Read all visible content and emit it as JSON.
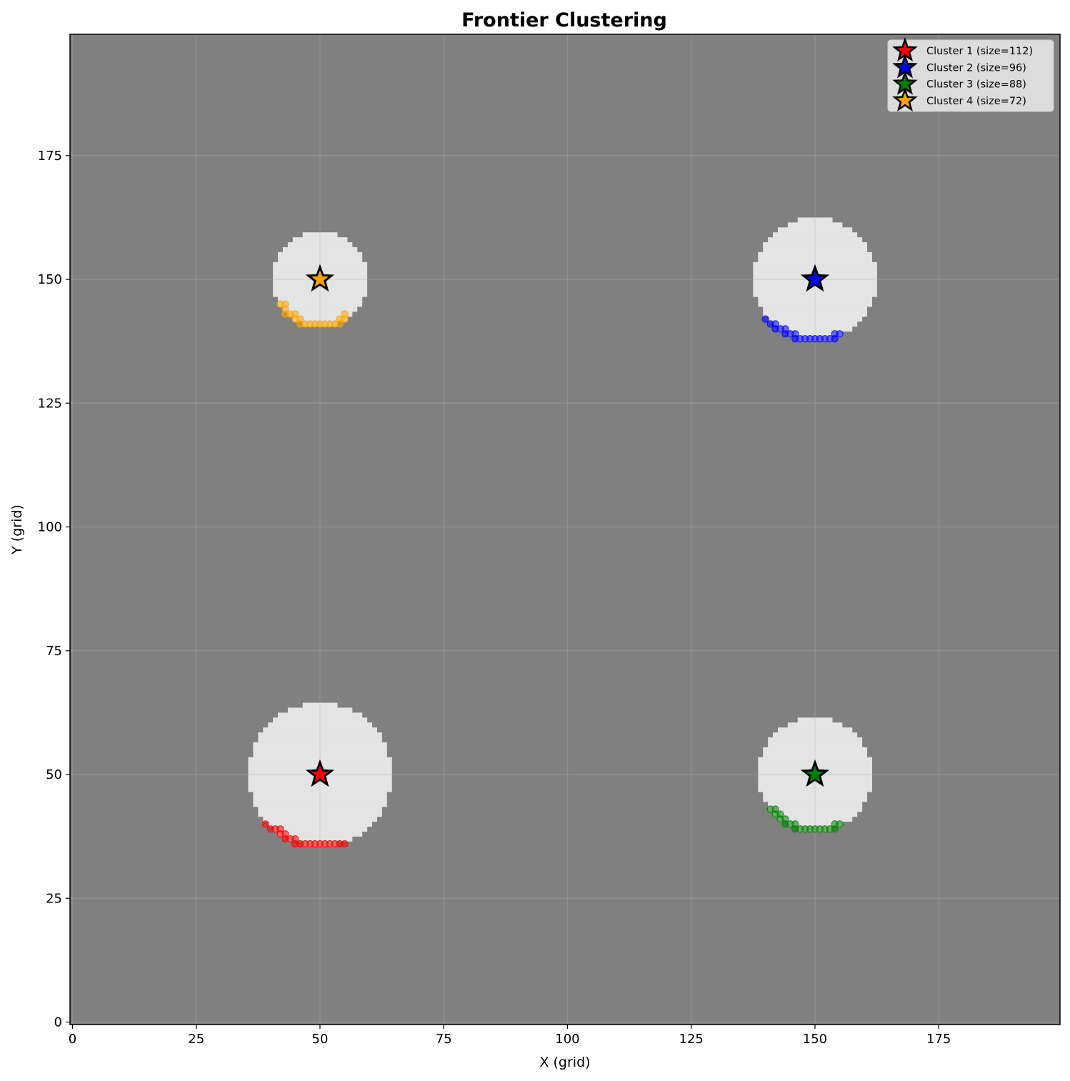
{
  "chart_data": {
    "type": "scatter",
    "title": "Frontier Clustering",
    "xlabel": "X (grid)",
    "ylabel": "Y (grid)",
    "xlim": [
      -0.5,
      199.5
    ],
    "ylim": [
      -0.5,
      199.5
    ],
    "grid": true,
    "legend_position": "top-right",
    "xticks": [
      0,
      25,
      50,
      75,
      100,
      125,
      150,
      175
    ],
    "yticks": [
      0,
      25,
      50,
      75,
      100,
      125,
      150,
      175
    ],
    "background": {
      "unknown_color": "#808080",
      "free_color": "#e4e4e4",
      "explored_regions": [
        {
          "cx": 50,
          "cy": 50,
          "r": 14.5
        },
        {
          "cx": 150,
          "cy": 150,
          "r": 12.5
        },
        {
          "cx": 150,
          "cy": 50,
          "r": 11.5
        },
        {
          "cx": 50,
          "cy": 150,
          "r": 9.5
        }
      ]
    },
    "series": [
      {
        "name": "Cluster 1 (size=112)",
        "color": "#ff0000",
        "centroid": [
          50,
          50
        ],
        "points": [
          [
            39,
            40
          ],
          [
            40,
            39
          ],
          [
            41,
            39
          ],
          [
            42,
            39
          ],
          [
            42,
            38
          ],
          [
            43,
            38
          ],
          [
            43,
            37
          ],
          [
            44,
            37
          ],
          [
            45,
            37
          ],
          [
            45,
            36
          ],
          [
            46,
            36
          ],
          [
            47,
            36
          ],
          [
            48,
            36
          ],
          [
            49,
            36
          ],
          [
            50,
            36
          ],
          [
            51,
            36
          ],
          [
            52,
            36
          ],
          [
            53,
            36
          ],
          [
            54,
            36
          ],
          [
            55,
            36
          ]
        ]
      },
      {
        "name": "Cluster 2 (size=96)",
        "color": "#0000ff",
        "centroid": [
          150,
          150
        ],
        "points": [
          [
            140,
            142
          ],
          [
            141,
            141
          ],
          [
            142,
            141
          ],
          [
            142,
            140
          ],
          [
            143,
            140
          ],
          [
            144,
            140
          ],
          [
            144,
            139
          ],
          [
            145,
            139
          ],
          [
            146,
            139
          ],
          [
            146,
            138
          ],
          [
            147,
            138
          ],
          [
            148,
            138
          ],
          [
            149,
            138
          ],
          [
            150,
            138
          ],
          [
            151,
            138
          ],
          [
            152,
            138
          ],
          [
            153,
            138
          ],
          [
            154,
            138
          ],
          [
            154,
            139
          ],
          [
            155,
            139
          ]
        ]
      },
      {
        "name": "Cluster 3 (size=88)",
        "color": "#008000",
        "centroid": [
          150,
          50
        ],
        "points": [
          [
            141,
            43
          ],
          [
            142,
            43
          ],
          [
            142,
            42
          ],
          [
            143,
            42
          ],
          [
            143,
            41
          ],
          [
            144,
            41
          ],
          [
            144,
            40
          ],
          [
            145,
            40
          ],
          [
            146,
            40
          ],
          [
            146,
            39
          ],
          [
            147,
            39
          ],
          [
            148,
            39
          ],
          [
            149,
            39
          ],
          [
            150,
            39
          ],
          [
            151,
            39
          ],
          [
            152,
            39
          ],
          [
            153,
            39
          ],
          [
            154,
            39
          ],
          [
            154,
            40
          ],
          [
            155,
            40
          ]
        ]
      },
      {
        "name": "Cluster 4 (size=72)",
        "color": "#ffa500",
        "centroid": [
          50,
          150
        ],
        "points": [
          [
            42,
            145
          ],
          [
            43,
            145
          ],
          [
            43,
            144
          ],
          [
            43,
            143
          ],
          [
            44,
            143
          ],
          [
            45,
            143
          ],
          [
            45,
            142
          ],
          [
            46,
            142
          ],
          [
            46,
            141
          ],
          [
            47,
            141
          ],
          [
            48,
            141
          ],
          [
            49,
            141
          ],
          [
            50,
            141
          ],
          [
            51,
            141
          ],
          [
            52,
            141
          ],
          [
            53,
            141
          ],
          [
            54,
            141
          ],
          [
            54,
            142
          ],
          [
            55,
            142
          ],
          [
            55,
            143
          ]
        ]
      }
    ]
  }
}
